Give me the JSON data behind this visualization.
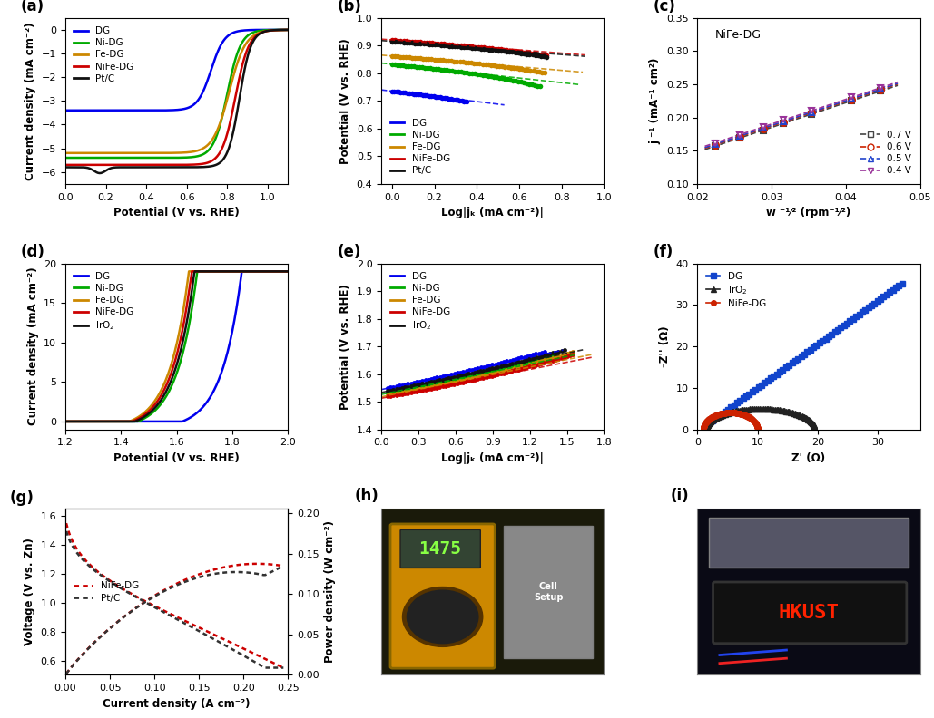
{
  "colors": {
    "DG": "#0000ee",
    "Ni-DG": "#00aa00",
    "Fe-DG": "#cc8800",
    "NiFe-DG": "#cc0000",
    "PtC": "#111111",
    "IrO2": "#111111"
  },
  "panel_a": {
    "xlabel": "Potential (V vs. RHE)",
    "ylabel": "Current density (mA cm⁻²)",
    "xlim": [
      0.0,
      1.1
    ],
    "ylim": [
      -6.5,
      0.5
    ],
    "yticks": [
      0,
      -1,
      -2,
      -3,
      -4,
      -5,
      -6
    ],
    "xticks": [
      0.0,
      0.2,
      0.4,
      0.6,
      0.8,
      1.0
    ]
  },
  "panel_b": {
    "xlabel": "Log|jₖ (mA cm⁻²)|",
    "ylabel": "Potential (V vs. RHE)",
    "xlim": [
      -0.05,
      1.0
    ],
    "ylim": [
      0.4,
      1.0
    ],
    "yticks": [
      0.4,
      0.5,
      0.6,
      0.7,
      0.8,
      0.9,
      1.0
    ],
    "xticks": [
      0.0,
      0.2,
      0.4,
      0.6,
      0.8,
      1.0
    ]
  },
  "panel_c": {
    "xlabel": "w ⁻¹⁄² (rpm⁻¹⁄²)",
    "ylabel": "j ⁻¹ (mA⁻¹ cm²)",
    "xlim": [
      0.02,
      0.05
    ],
    "ylim": [
      0.1,
      0.35
    ],
    "yticks": [
      0.1,
      0.15,
      0.2,
      0.25,
      0.3,
      0.35
    ],
    "xticks": [
      0.02,
      0.03,
      0.04,
      0.05
    ],
    "annotation": "NiFe-DG"
  },
  "panel_d": {
    "xlabel": "Potential (V vs. RHE)",
    "ylabel": "Current density (mA cm⁻²)",
    "xlim": [
      1.2,
      2.0
    ],
    "ylim": [
      -1,
      20
    ],
    "yticks": [
      0,
      5,
      10,
      15,
      20
    ],
    "xticks": [
      1.2,
      1.4,
      1.6,
      1.8,
      2.0
    ]
  },
  "panel_e": {
    "xlabel": "Log|jₖ (mA cm⁻²)|",
    "ylabel": "Potential (V vs. RHE)",
    "xlim": [
      0.0,
      1.8
    ],
    "ylim": [
      1.4,
      2.0
    ],
    "yticks": [
      1.4,
      1.5,
      1.6,
      1.7,
      1.8,
      1.9,
      2.0
    ],
    "xticks": [
      0.0,
      0.3,
      0.6,
      0.9,
      1.2,
      1.5,
      1.8
    ]
  },
  "panel_f": {
    "xlabel": "Z' (Ω)",
    "ylabel": "-Z'' (Ω)",
    "xlim": [
      0,
      37
    ],
    "ylim": [
      0,
      40
    ],
    "yticks": [
      0,
      10,
      20,
      30,
      40
    ],
    "xticks": [
      0,
      10,
      20,
      30
    ]
  },
  "panel_g": {
    "xlabel": "Current density (A cm⁻²)",
    "ylabel_left": "Voltage (V vs. Zn)",
    "ylabel_right": "Power density (W cm⁻²)",
    "xlim": [
      0.0,
      0.25
    ],
    "ylim_left": [
      0.5,
      1.65
    ],
    "ylim_right": [
      0.0,
      0.205
    ],
    "xticks": [
      0.0,
      0.05,
      0.1,
      0.15,
      0.2,
      0.25
    ],
    "yticks_left": [
      0.6,
      0.8,
      1.0,
      1.2,
      1.4,
      1.6
    ],
    "yticks_right": [
      0.0,
      0.05,
      0.1,
      0.15,
      0.2
    ]
  }
}
